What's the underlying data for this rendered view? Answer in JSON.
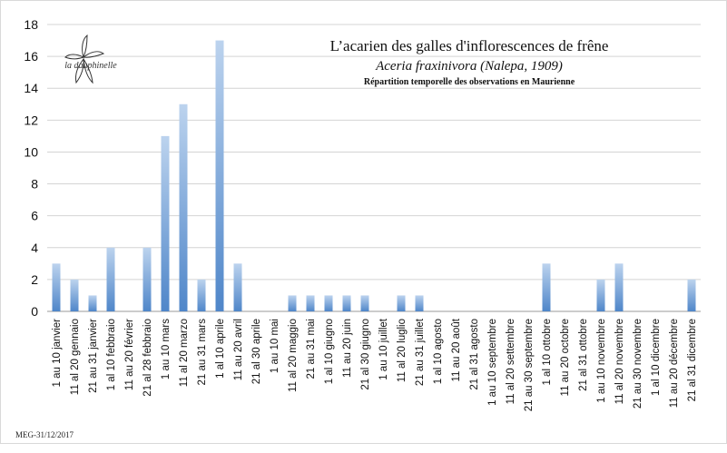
{
  "chart_data": {
    "type": "bar",
    "title": "L’acarien des galles d'inflorescences de frêne",
    "subtitle": "Aceria fraxinivora (Nalepa, 1909)",
    "subtitle2": "Répartition temporelle des observations en Maurienne",
    "logo_text": "la dauphinelle",
    "xlabel": "",
    "ylabel": "",
    "ylim": [
      0,
      18
    ],
    "yticks": [
      0,
      2,
      4,
      6,
      8,
      10,
      12,
      14,
      16,
      18
    ],
    "grid": true,
    "legend": "none",
    "categories": [
      "1 au 10 janvier",
      "11 al 20 gennaio",
      "21 au 31 janvier",
      "1 al 10 febbraio",
      "11 au 20 février",
      "21 al 28 febbraio",
      "1 au 10 mars",
      "11 al 20 marzo",
      "21 au 31 mars",
      "1 al 10 aprile",
      "11 au 20 avril",
      "21 al 30 aprile",
      "1 au 10 mai",
      "11 al 20 maggio",
      "21 au 31 mai",
      "1 al 10 giugno",
      "11 au 20 juin",
      "21 al 30 giugno",
      "1 au 10 juillet",
      "11 al 20 luglio",
      "21 au 31 juillet",
      "1 al 10 agosto",
      "11 au 20 août",
      "21 al 31 agosto",
      "1 au 10 septembre",
      "11 al 20 settembre",
      "21 au 30 septembre",
      "1 al 10 ottobre",
      "11 au 20 octobre",
      "21 al 31 ottobre",
      "1 au 10 novembre",
      "11 al 20 novembre",
      "21 au 30 novembre",
      "1 al 10 dicembre",
      "11 au 20 décembre",
      "21 al 31 dicembre"
    ],
    "values": [
      3,
      2,
      1,
      4,
      0,
      4,
      11,
      13,
      2,
      17,
      3,
      0,
      0,
      1,
      1,
      1,
      1,
      1,
      0,
      1,
      1,
      0,
      0,
      0,
      0,
      0,
      0,
      3,
      0,
      0,
      2,
      3,
      0,
      0,
      0,
      2
    ],
    "bar_color_top": "#bcd3ee",
    "bar_color_bottom": "#4f86c9"
  },
  "footer": {
    "text": "MEG-31/12/2017"
  }
}
